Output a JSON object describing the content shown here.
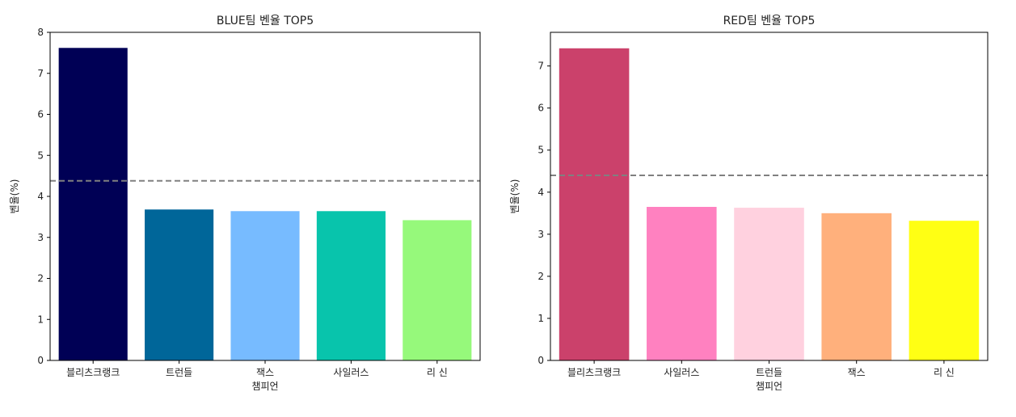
{
  "chart_data": [
    {
      "type": "bar",
      "title": "BLUE팀 벤율 TOP5",
      "xlabel": "챔피언",
      "ylabel": "벤율(%)",
      "categories": [
        "블리츠크랭크",
        "트런들",
        "잭스",
        "사일러스",
        "리 신"
      ],
      "values": [
        7.62,
        3.68,
        3.64,
        3.64,
        3.42
      ],
      "colors": [
        "#000055",
        "#006699",
        "#77BBFF",
        "#08C4AC",
        "#96F97B"
      ],
      "ylim": [
        0,
        8
      ],
      "yticks": [
        0,
        1,
        2,
        3,
        4,
        5,
        6,
        7,
        8
      ],
      "reference_line": 4.38,
      "reference_line_style": "dashed gray",
      "grid": false
    },
    {
      "type": "bar",
      "title": "RED팀 벤율 TOP5",
      "xlabel": "챔피언",
      "ylabel": "벤율(%)",
      "categories": [
        "블리츠크랭크",
        "사일러스",
        "트런들",
        "잭스",
        "리 신"
      ],
      "values": [
        7.42,
        3.65,
        3.63,
        3.5,
        3.32
      ],
      "colors": [
        "#CB416B",
        "#FF81C0",
        "#FFD1DF",
        "#FFB07C",
        "#FFFF14"
      ],
      "ylim": [
        0,
        7.8
      ],
      "yticks": [
        0,
        1,
        2,
        3,
        4,
        5,
        6,
        7
      ],
      "reference_line": 4.4,
      "reference_line_style": "dashed gray",
      "grid": false
    }
  ]
}
